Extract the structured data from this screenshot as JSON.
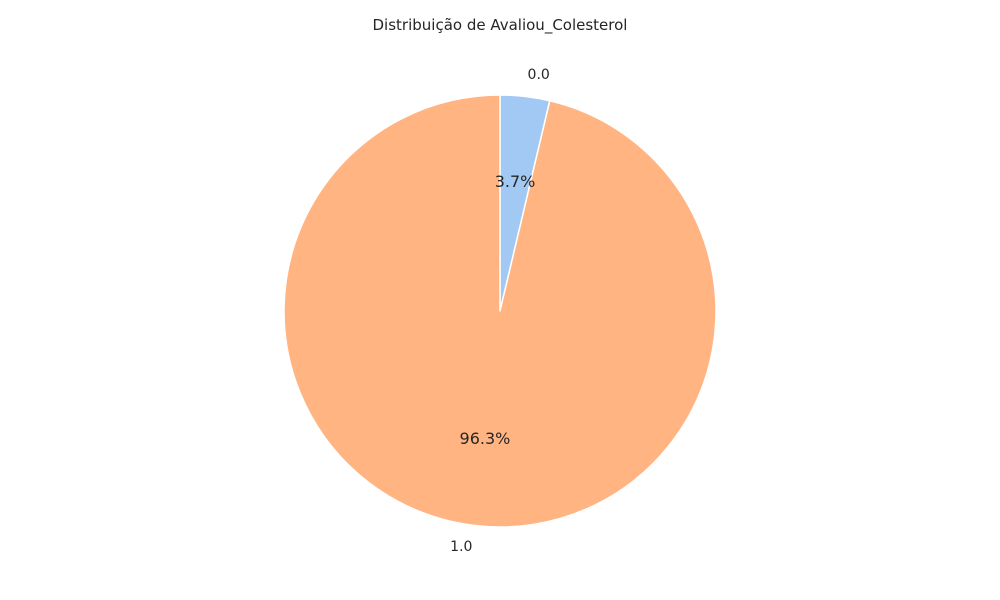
{
  "chart_data": {
    "type": "pie",
    "title": "Distribuição de Avaliou_Colesterol",
    "categories": [
      "0.0",
      "1.0"
    ],
    "values": [
      3.7,
      96.3
    ],
    "percent_labels": [
      "3.7%",
      "96.3%"
    ],
    "colors": [
      "#a1c9f4",
      "#ffb482"
    ],
    "start_angle_deg": 90,
    "direction": "clockwise",
    "edge_color": "#ffffff"
  }
}
